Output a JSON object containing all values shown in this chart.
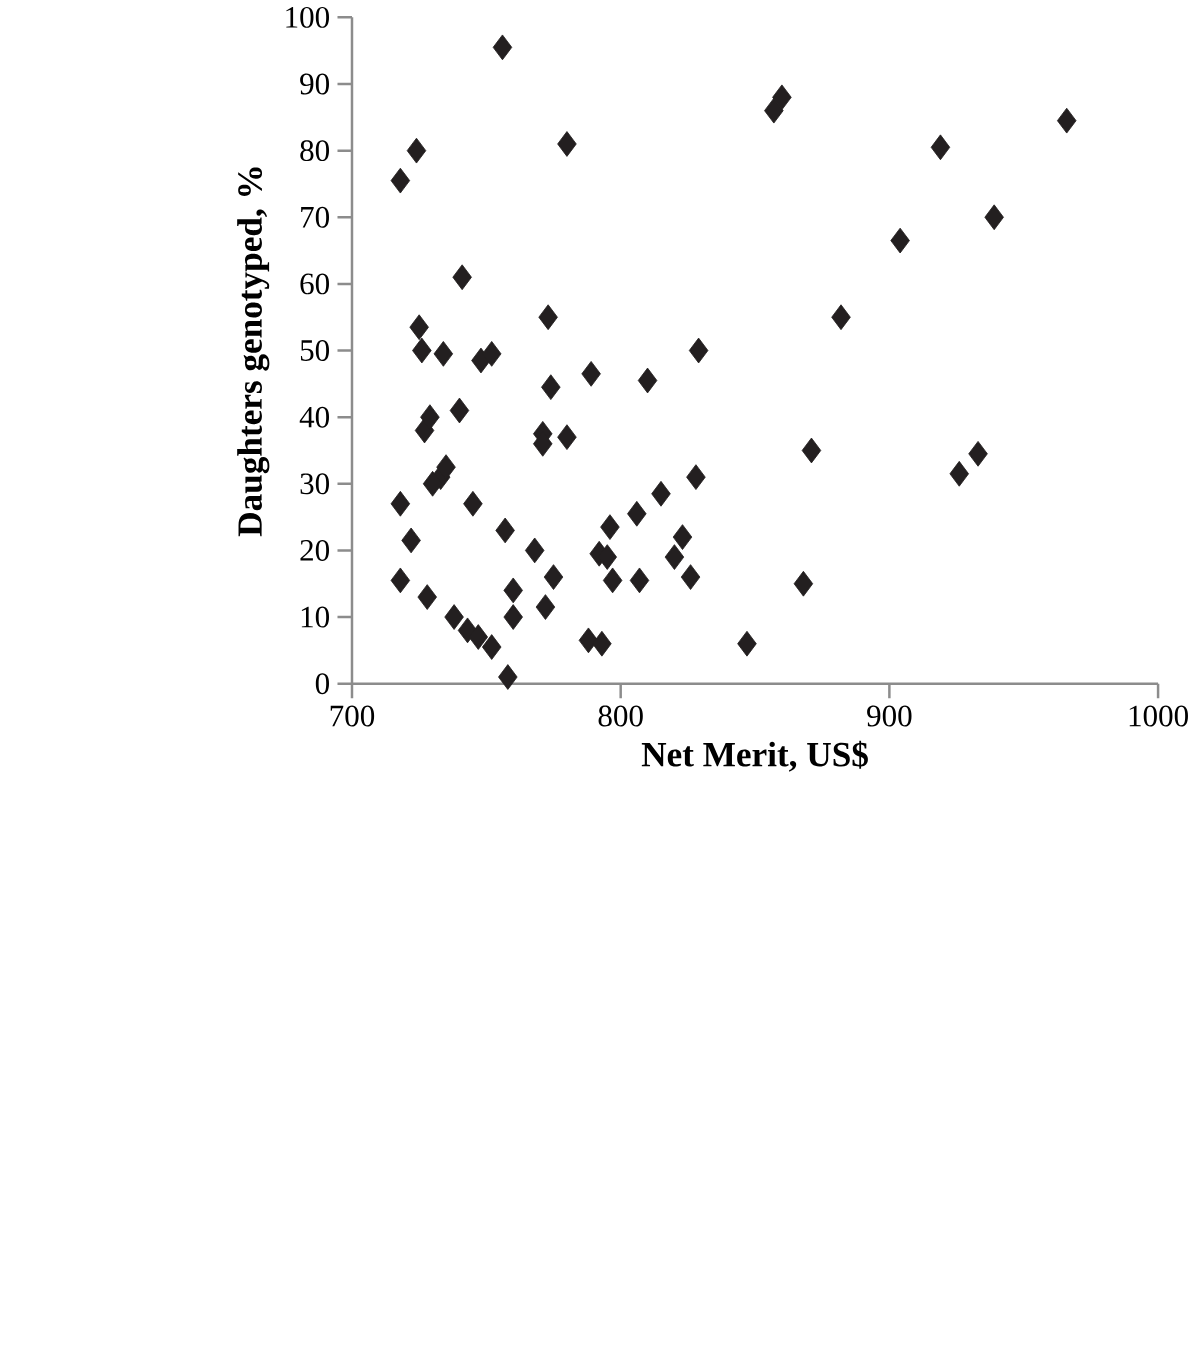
{
  "chart_data": {
    "type": "scatter",
    "xlabel": "Net Merit, US$",
    "ylabel": "Daughters genotyped, %",
    "x": [
      718,
      724,
      756,
      780,
      722,
      718,
      718,
      725,
      726,
      727,
      729,
      733,
      735,
      734,
      730,
      728,
      738,
      740,
      741,
      743,
      747,
      745,
      748,
      752,
      752,
      757,
      758,
      760,
      760,
      768,
      771,
      771,
      773,
      774,
      772,
      775,
      780,
      789,
      788,
      792,
      793,
      796,
      795,
      797,
      806,
      810,
      807,
      815,
      820,
      823,
      826,
      828,
      829,
      847,
      857,
      860,
      868,
      871,
      882,
      904,
      919,
      926,
      933,
      939,
      966
    ],
    "values": [
      75.5,
      80,
      95.5,
      81,
      21.5,
      27,
      15.5,
      53.5,
      50,
      38,
      40,
      31,
      32.5,
      49.5,
      30,
      13,
      10,
      41,
      61,
      8,
      7,
      27,
      48.5,
      49.5,
      5.5,
      23,
      1,
      14,
      10,
      20,
      37.5,
      36,
      55,
      44.5,
      11.5,
      16,
      37,
      46.5,
      6.5,
      19.5,
      6,
      23.5,
      19,
      15.5,
      25.5,
      45.5,
      15.5,
      28.5,
      19,
      22,
      16,
      31,
      50,
      6,
      86,
      88,
      15,
      35,
      55,
      66.5,
      80.5,
      31.5,
      34.5,
      70,
      84.5
    ],
    "color": "#231f20",
    "marker": "diamond",
    "xlim": [
      700,
      1000
    ],
    "xticks": [
      700,
      800,
      900,
      1000
    ],
    "ylim": [
      0,
      100
    ],
    "yticks": [
      0,
      10,
      20,
      30,
      40,
      50,
      60,
      70,
      80,
      90,
      100
    ]
  }
}
